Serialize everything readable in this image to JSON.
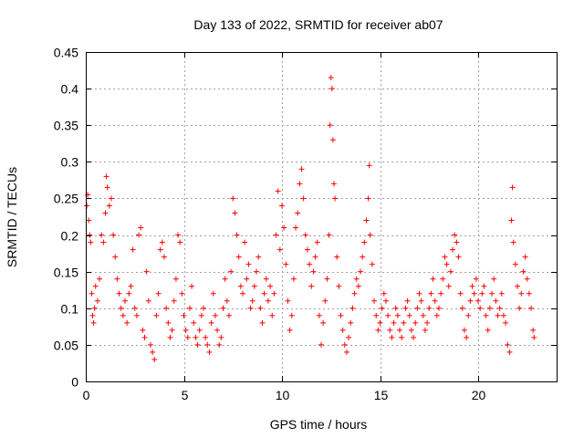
{
  "chart_data": {
    "type": "scatter",
    "title": "Day 133 of 2022, SRMTID for receiver ab07",
    "xlabel": "GPS time / hours",
    "ylabel": "SRMTID / TECUs",
    "xlim": [
      0,
      24
    ],
    "ylim": [
      0,
      0.45
    ],
    "xticks": [
      0,
      5,
      10,
      15,
      20
    ],
    "xtick_labels": [
      "0",
      "5",
      "10",
      "15",
      "20"
    ],
    "yticks": [
      0,
      0.05,
      0.1,
      0.15,
      0.2,
      0.25,
      0.3,
      0.35,
      0.4,
      0.45
    ],
    "ytick_labels": [
      "0",
      "0.05",
      "0.1",
      "0.15",
      "0.2",
      "0.25",
      "0.3",
      "0.35",
      "0.4",
      "0.45"
    ],
    "grid": true,
    "marker": "+",
    "color": "#ff0000",
    "series": [
      {
        "name": "SRMTID",
        "points": [
          [
            0.05,
            0.24
          ],
          [
            0.1,
            0.255
          ],
          [
            0.15,
            0.22
          ],
          [
            0.2,
            0.2
          ],
          [
            0.25,
            0.19
          ],
          [
            0.3,
            0.12
          ],
          [
            0.35,
            0.09
          ],
          [
            0.4,
            0.08
          ],
          [
            0.45,
            0.1
          ],
          [
            0.5,
            0.13
          ],
          [
            0.6,
            0.11
          ],
          [
            0.7,
            0.14
          ],
          [
            0.8,
            0.2
          ],
          [
            0.9,
            0.19
          ],
          [
            1.0,
            0.23
          ],
          [
            1.05,
            0.28
          ],
          [
            1.1,
            0.265
          ],
          [
            1.2,
            0.24
          ],
          [
            1.3,
            0.25
          ],
          [
            1.4,
            0.2
          ],
          [
            1.5,
            0.17
          ],
          [
            1.6,
            0.14
          ],
          [
            1.7,
            0.12
          ],
          [
            1.8,
            0.1
          ],
          [
            1.9,
            0.09
          ],
          [
            2.0,
            0.11
          ],
          [
            2.1,
            0.08
          ],
          [
            2.2,
            0.12
          ],
          [
            2.3,
            0.13
          ],
          [
            2.4,
            0.18
          ],
          [
            2.5,
            0.1
          ],
          [
            2.6,
            0.09
          ],
          [
            2.7,
            0.2
          ],
          [
            2.8,
            0.21
          ],
          [
            2.9,
            0.07
          ],
          [
            3.0,
            0.06
          ],
          [
            3.1,
            0.15
          ],
          [
            3.2,
            0.11
          ],
          [
            3.3,
            0.05
          ],
          [
            3.4,
            0.04
          ],
          [
            3.5,
            0.03
          ],
          [
            3.6,
            0.09
          ],
          [
            3.7,
            0.12
          ],
          [
            3.8,
            0.18
          ],
          [
            3.9,
            0.19
          ],
          [
            4.0,
            0.17
          ],
          [
            4.1,
            0.1
          ],
          [
            4.2,
            0.08
          ],
          [
            4.3,
            0.06
          ],
          [
            4.4,
            0.07
          ],
          [
            4.5,
            0.11
          ],
          [
            4.6,
            0.14
          ],
          [
            4.7,
            0.2
          ],
          [
            4.8,
            0.19
          ],
          [
            4.9,
            0.12
          ],
          [
            5.0,
            0.09
          ],
          [
            5.1,
            0.07
          ],
          [
            5.2,
            0.06
          ],
          [
            5.3,
            0.1
          ],
          [
            5.4,
            0.13
          ],
          [
            5.5,
            0.08
          ],
          [
            5.6,
            0.06
          ],
          [
            5.7,
            0.05
          ],
          [
            5.8,
            0.07
          ],
          [
            5.9,
            0.09
          ],
          [
            6.0,
            0.1
          ],
          [
            6.1,
            0.06
          ],
          [
            6.2,
            0.05
          ],
          [
            6.3,
            0.04
          ],
          [
            6.4,
            0.08
          ],
          [
            6.5,
            0.12
          ],
          [
            6.6,
            0.09
          ],
          [
            6.7,
            0.07
          ],
          [
            6.8,
            0.05
          ],
          [
            6.9,
            0.06
          ],
          [
            7.0,
            0.1
          ],
          [
            7.1,
            0.14
          ],
          [
            7.2,
            0.11
          ],
          [
            7.3,
            0.09
          ],
          [
            7.4,
            0.15
          ],
          [
            7.5,
            0.25
          ],
          [
            7.6,
            0.23
          ],
          [
            7.7,
            0.2
          ],
          [
            7.8,
            0.17
          ],
          [
            7.9,
            0.13
          ],
          [
            8.0,
            0.12
          ],
          [
            8.1,
            0.19
          ],
          [
            8.2,
            0.14
          ],
          [
            8.3,
            0.16
          ],
          [
            8.4,
            0.1
          ],
          [
            8.5,
            0.11
          ],
          [
            8.6,
            0.13
          ],
          [
            8.7,
            0.15
          ],
          [
            8.8,
            0.17
          ],
          [
            8.9,
            0.1
          ],
          [
            9.0,
            0.08
          ],
          [
            9.1,
            0.12
          ],
          [
            9.2,
            0.14
          ],
          [
            9.3,
            0.11
          ],
          [
            9.4,
            0.13
          ],
          [
            9.5,
            0.09
          ],
          [
            9.6,
            0.12
          ],
          [
            9.7,
            0.2
          ],
          [
            9.8,
            0.26
          ],
          [
            9.9,
            0.18
          ],
          [
            10.0,
            0.24
          ],
          [
            10.1,
            0.21
          ],
          [
            10.2,
            0.16
          ],
          [
            10.3,
            0.11
          ],
          [
            10.4,
            0.07
          ],
          [
            10.5,
            0.09
          ],
          [
            10.6,
            0.14
          ],
          [
            10.7,
            0.21
          ],
          [
            10.8,
            0.23
          ],
          [
            10.9,
            0.27
          ],
          [
            11.0,
            0.29
          ],
          [
            11.1,
            0.25
          ],
          [
            11.2,
            0.2
          ],
          [
            11.3,
            0.18
          ],
          [
            11.4,
            0.16
          ],
          [
            11.5,
            0.13
          ],
          [
            11.6,
            0.15
          ],
          [
            11.7,
            0.17
          ],
          [
            11.8,
            0.19
          ],
          [
            11.9,
            0.09
          ],
          [
            12.0,
            0.05
          ],
          [
            12.1,
            0.08
          ],
          [
            12.2,
            0.11
          ],
          [
            12.3,
            0.14
          ],
          [
            12.4,
            0.2
          ],
          [
            12.45,
            0.35
          ],
          [
            12.5,
            0.415
          ],
          [
            12.55,
            0.4
          ],
          [
            12.6,
            0.33
          ],
          [
            12.65,
            0.27
          ],
          [
            12.7,
            0.25
          ],
          [
            12.8,
            0.17
          ],
          [
            12.9,
            0.13
          ],
          [
            13.0,
            0.09
          ],
          [
            13.1,
            0.07
          ],
          [
            13.2,
            0.05
          ],
          [
            13.3,
            0.04
          ],
          [
            13.4,
            0.06
          ],
          [
            13.5,
            0.08
          ],
          [
            13.6,
            0.1
          ],
          [
            13.7,
            0.12
          ],
          [
            13.8,
            0.14
          ],
          [
            13.9,
            0.13
          ],
          [
            14.0,
            0.15
          ],
          [
            14.1,
            0.17
          ],
          [
            14.2,
            0.19
          ],
          [
            14.3,
            0.22
          ],
          [
            14.4,
            0.25
          ],
          [
            14.45,
            0.295
          ],
          [
            14.5,
            0.2
          ],
          [
            14.6,
            0.16
          ],
          [
            14.7,
            0.11
          ],
          [
            14.8,
            0.09
          ],
          [
            14.9,
            0.07
          ],
          [
            15.0,
            0.08
          ],
          [
            15.1,
            0.1
          ],
          [
            15.2,
            0.12
          ],
          [
            15.3,
            0.11
          ],
          [
            15.4,
            0.09
          ],
          [
            15.5,
            0.07
          ],
          [
            15.6,
            0.06
          ],
          [
            15.7,
            0.08
          ],
          [
            15.8,
            0.1
          ],
          [
            15.9,
            0.09
          ],
          [
            16.0,
            0.07
          ],
          [
            16.1,
            0.06
          ],
          [
            16.2,
            0.08
          ],
          [
            16.3,
            0.1
          ],
          [
            16.4,
            0.11
          ],
          [
            16.5,
            0.09
          ],
          [
            16.6,
            0.07
          ],
          [
            16.7,
            0.06
          ],
          [
            16.8,
            0.08
          ],
          [
            16.9,
            0.1
          ],
          [
            17.0,
            0.12
          ],
          [
            17.1,
            0.11
          ],
          [
            17.2,
            0.09
          ],
          [
            17.3,
            0.07
          ],
          [
            17.4,
            0.08
          ],
          [
            17.5,
            0.1
          ],
          [
            17.6,
            0.12
          ],
          [
            17.7,
            0.14
          ],
          [
            17.8,
            0.11
          ],
          [
            17.9,
            0.09
          ],
          [
            18.0,
            0.1
          ],
          [
            18.1,
            0.12
          ],
          [
            18.2,
            0.14
          ],
          [
            18.3,
            0.17
          ],
          [
            18.4,
            0.16
          ],
          [
            18.5,
            0.13
          ],
          [
            18.6,
            0.15
          ],
          [
            18.7,
            0.18
          ],
          [
            18.8,
            0.2
          ],
          [
            18.9,
            0.19
          ],
          [
            19.0,
            0.17
          ],
          [
            19.1,
            0.12
          ],
          [
            19.2,
            0.1
          ],
          [
            19.3,
            0.07
          ],
          [
            19.4,
            0.06
          ],
          [
            19.5,
            0.09
          ],
          [
            19.6,
            0.11
          ],
          [
            19.7,
            0.13
          ],
          [
            19.8,
            0.12
          ],
          [
            19.9,
            0.14
          ],
          [
            20.0,
            0.11
          ],
          [
            20.1,
            0.1
          ],
          [
            20.2,
            0.12
          ],
          [
            20.3,
            0.13
          ],
          [
            20.4,
            0.09
          ],
          [
            20.5,
            0.07
          ],
          [
            20.6,
            0.1
          ],
          [
            20.7,
            0.12
          ],
          [
            20.8,
            0.14
          ],
          [
            20.9,
            0.11
          ],
          [
            21.0,
            0.09
          ],
          [
            21.1,
            0.1
          ],
          [
            21.2,
            0.12
          ],
          [
            21.3,
            0.09
          ],
          [
            21.4,
            0.08
          ],
          [
            21.5,
            0.05
          ],
          [
            21.6,
            0.04
          ],
          [
            21.7,
            0.22
          ],
          [
            21.75,
            0.265
          ],
          [
            21.8,
            0.19
          ],
          [
            21.9,
            0.16
          ],
          [
            22.0,
            0.13
          ],
          [
            22.1,
            0.1
          ],
          [
            22.2,
            0.12
          ],
          [
            22.3,
            0.15
          ],
          [
            22.4,
            0.17
          ],
          [
            22.5,
            0.14
          ],
          [
            22.6,
            0.12
          ],
          [
            22.7,
            0.1
          ],
          [
            22.8,
            0.07
          ],
          [
            22.85,
            0.06
          ]
        ]
      }
    ]
  }
}
